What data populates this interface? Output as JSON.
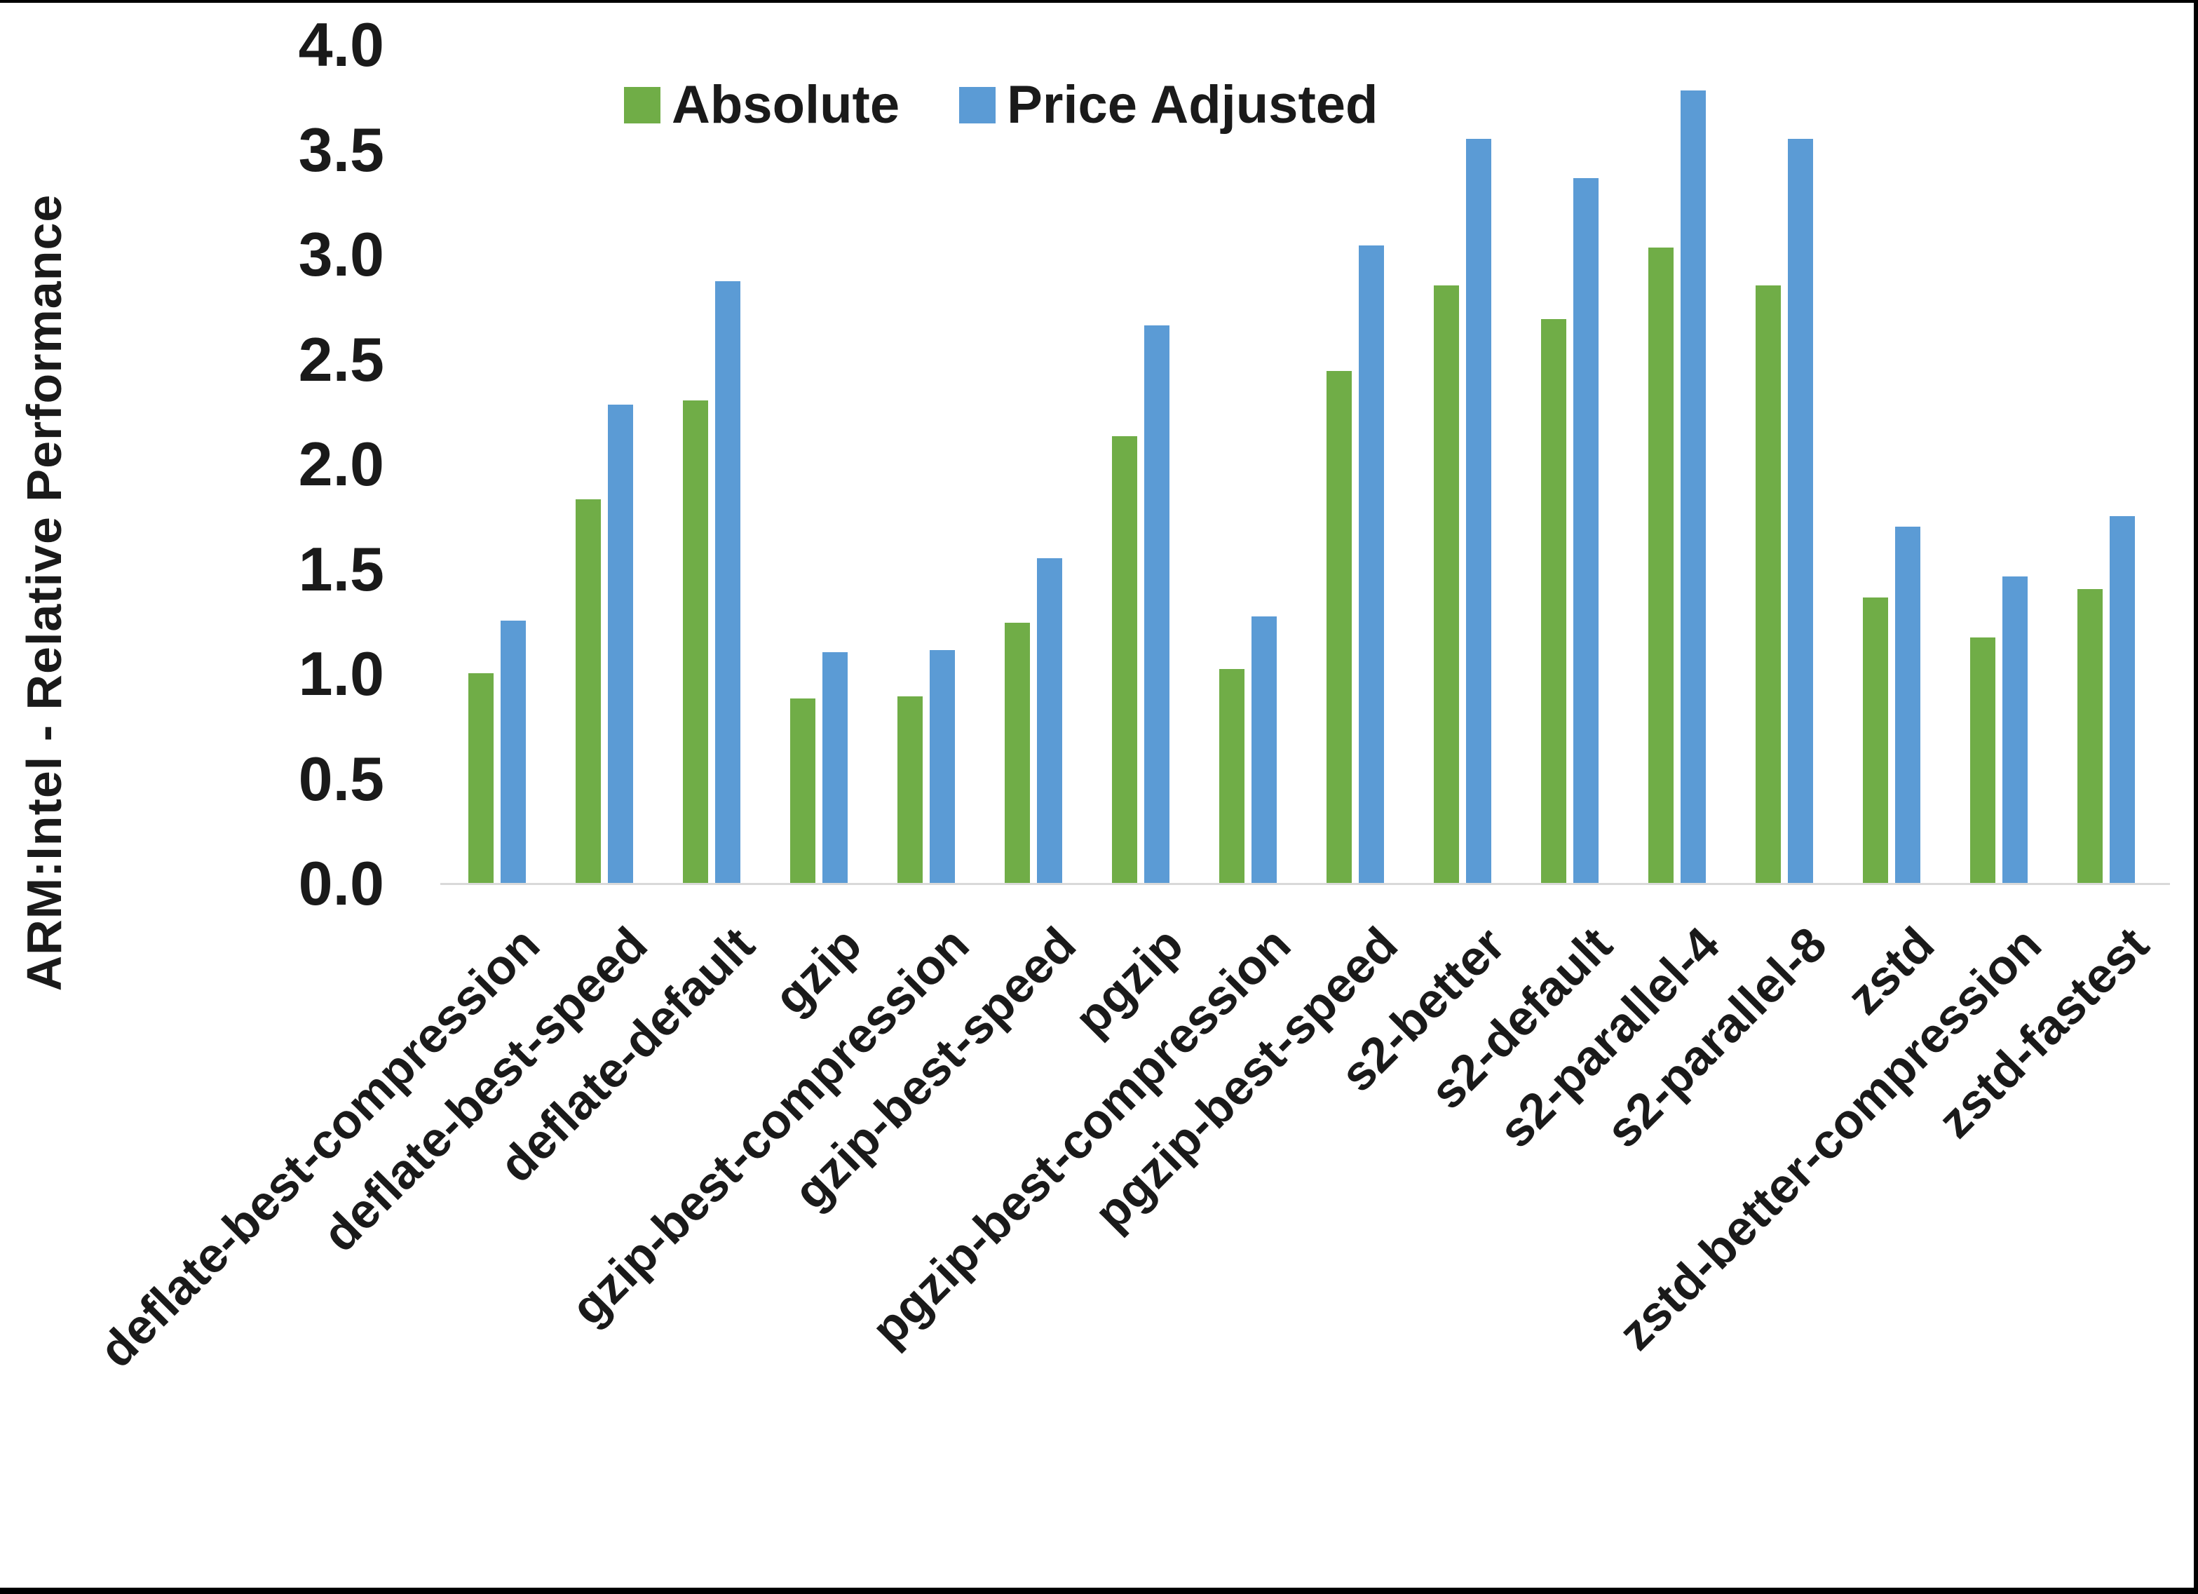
{
  "chart_data": {
    "type": "bar",
    "title": "",
    "xlabel": "",
    "ylabel": "ARM:Intel - Relative Performance",
    "ylim": [
      0.0,
      4.0
    ],
    "ytick_step": 0.5,
    "ytick_labels": [
      "0.0",
      "0.5",
      "1.0",
      "1.5",
      "2.0",
      "2.5",
      "3.0",
      "3.5",
      "4.0"
    ],
    "grid": false,
    "legend_position": "top-center",
    "axis_line_color": "#d9d9d9",
    "text_color": "#1a1a1a",
    "categories": [
      "deflate-best-compression",
      "deflate-best-speed",
      "deflate-default",
      "gzip",
      "gzip-best-compression",
      "gzip-best-speed",
      "pgzip",
      "pgzip-best-compression",
      "pgzip-best-speed",
      "s2-better",
      "s2-default",
      "s2-parallel-4",
      "s2-parallel-8",
      "zstd",
      "zstd-better-compression",
      "zstd-fastest"
    ],
    "series": [
      {
        "name": "Absolute",
        "color": "#70AD47",
        "values": [
          1.0,
          1.83,
          2.3,
          0.88,
          0.89,
          1.24,
          2.13,
          1.02,
          2.44,
          2.85,
          2.69,
          3.03,
          2.85,
          1.36,
          1.17,
          1.4
        ]
      },
      {
        "name": "Price Adjusted",
        "color": "#5B9BD5",
        "values": [
          1.25,
          2.28,
          2.87,
          1.1,
          1.11,
          1.55,
          2.66,
          1.27,
          3.04,
          3.55,
          3.36,
          3.78,
          3.55,
          1.7,
          1.46,
          1.75
        ]
      }
    ]
  }
}
